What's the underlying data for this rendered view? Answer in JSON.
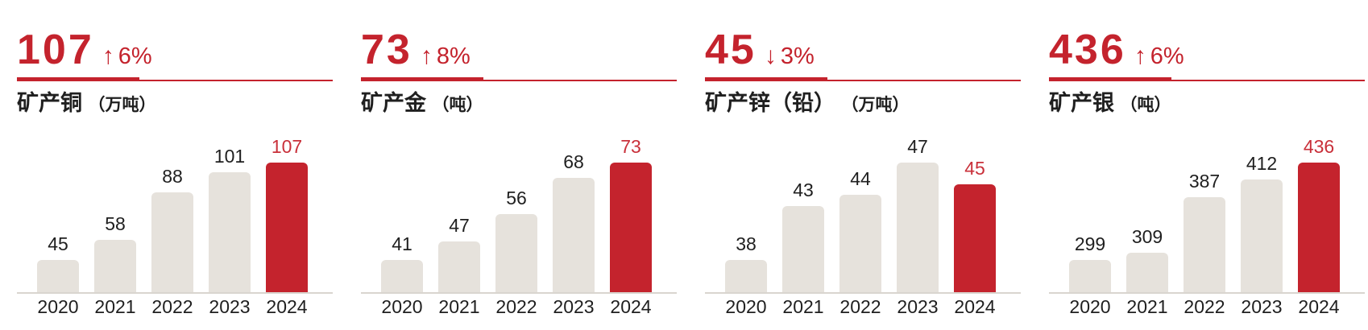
{
  "colors": {
    "accent_red": "#c4232d",
    "highlight_label_red": "#c9303a",
    "bar_fill_gray": "#e6e2dc",
    "axis_line_gray": "#d9d5cf",
    "text_dark": "#1f1f1f",
    "background": "#ffffff"
  },
  "chart_data": [
    {
      "type": "bar",
      "headline_value": "107",
      "trend": "up",
      "trend_arrow": "↑",
      "change_percent": "6%",
      "title": "矿产铜",
      "unit_label": "（万吨）",
      "categories": [
        "2020",
        "2021",
        "2022",
        "2023",
        "2024"
      ],
      "values": [
        45,
        58,
        88,
        101,
        107
      ],
      "highlight_index": 4,
      "highlight_year": "2024",
      "legend": "none",
      "grid": "off"
    },
    {
      "type": "bar",
      "headline_value": "73",
      "trend": "up",
      "trend_arrow": "↑",
      "change_percent": "8%",
      "title": "矿产金",
      "unit_label": "（吨）",
      "categories": [
        "2020",
        "2021",
        "2022",
        "2023",
        "2024"
      ],
      "values": [
        41,
        47,
        56,
        68,
        73
      ],
      "highlight_index": 4,
      "highlight_year": "2024",
      "legend": "none",
      "grid": "off"
    },
    {
      "type": "bar",
      "headline_value": "45",
      "trend": "down",
      "trend_arrow": "↓",
      "change_percent": "3%",
      "title": "矿产锌（铅）",
      "unit_label": "（万吨）",
      "categories": [
        "2020",
        "2021",
        "2022",
        "2023",
        "2024"
      ],
      "values": [
        38,
        43,
        44,
        47,
        45
      ],
      "highlight_index": 4,
      "highlight_year": "2024",
      "legend": "none",
      "grid": "off"
    },
    {
      "type": "bar",
      "headline_value": "436",
      "trend": "up",
      "trend_arrow": "↑",
      "change_percent": "6%",
      "title": "矿产银",
      "unit_label": "（吨）",
      "categories": [
        "2020",
        "2021",
        "2022",
        "2023",
        "2024"
      ],
      "values": [
        299,
        309,
        387,
        412,
        436
      ],
      "highlight_index": 4,
      "highlight_year": "2024",
      "legend": "none",
      "grid": "off"
    }
  ]
}
